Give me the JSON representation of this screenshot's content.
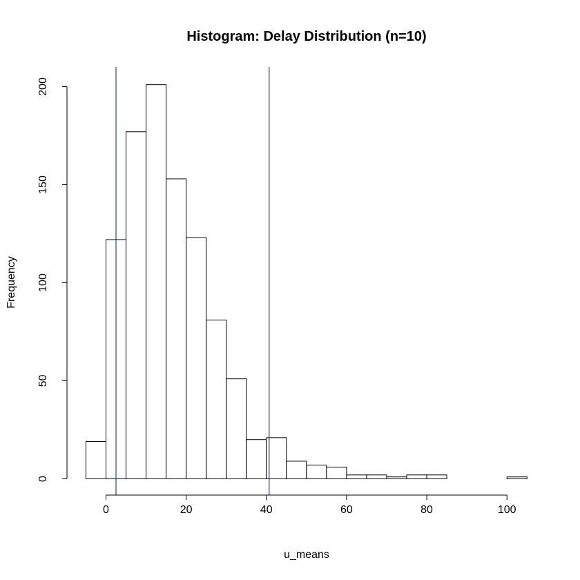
{
  "chart_data": {
    "type": "bar",
    "title": "Histogram: Delay Distribution (n=10)",
    "xlabel": "u_means",
    "ylabel": "Frequency",
    "xlim": [
      -5,
      105
    ],
    "ylim": [
      0,
      210
    ],
    "x_ticks": [
      0,
      20,
      40,
      60,
      80,
      100
    ],
    "y_ticks": [
      0,
      50,
      100,
      150,
      200
    ],
    "bin_width": 5,
    "bins": [
      {
        "start": -5,
        "end": 0,
        "count": 19
      },
      {
        "start": 0,
        "end": 5,
        "count": 122
      },
      {
        "start": 5,
        "end": 10,
        "count": 177
      },
      {
        "start": 10,
        "end": 15,
        "count": 201
      },
      {
        "start": 15,
        "end": 20,
        "count": 153
      },
      {
        "start": 20,
        "end": 25,
        "count": 123
      },
      {
        "start": 25,
        "end": 30,
        "count": 81
      },
      {
        "start": 30,
        "end": 35,
        "count": 51
      },
      {
        "start": 35,
        "end": 40,
        "count": 20
      },
      {
        "start": 40,
        "end": 45,
        "count": 21
      },
      {
        "start": 45,
        "end": 50,
        "count": 9
      },
      {
        "start": 50,
        "end": 55,
        "count": 7
      },
      {
        "start": 55,
        "end": 60,
        "count": 6
      },
      {
        "start": 60,
        "end": 65,
        "count": 2
      },
      {
        "start": 65,
        "end": 70,
        "count": 2
      },
      {
        "start": 70,
        "end": 75,
        "count": 1
      },
      {
        "start": 75,
        "end": 80,
        "count": 2
      },
      {
        "start": 80,
        "end": 85,
        "count": 2
      },
      {
        "start": 85,
        "end": 90,
        "count": 0
      },
      {
        "start": 90,
        "end": 95,
        "count": 0
      },
      {
        "start": 95,
        "end": 100,
        "count": 0
      },
      {
        "start": 100,
        "end": 105,
        "count": 1
      }
    ],
    "vertical_lines": [
      2.5,
      40.7
    ],
    "vertical_line_color": "#1a1a5e",
    "grid": false
  }
}
